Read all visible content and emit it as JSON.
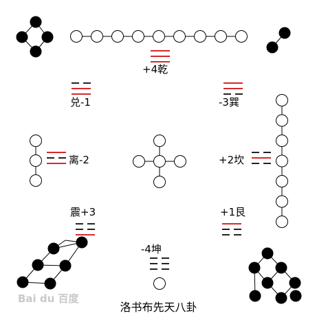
{
  "title": "洛书布先天八卦",
  "watermark": "Bai du 百度",
  "colors": {
    "yang_line": "#d42a2a",
    "yin_line": "#222222",
    "dot_fill_dark": "#000000",
    "dot_fill_light": "#ffffff"
  },
  "trigrams": {
    "qian": {
      "label": "+4乾",
      "lines": [
        "yang",
        "yang",
        "yang"
      ]
    },
    "dui": {
      "label": "兑-1",
      "lines": [
        "yin",
        "yang",
        "yang"
      ]
    },
    "xun": {
      "label": "-3巽",
      "lines": [
        "yang",
        "yang",
        "yin"
      ]
    },
    "li": {
      "label": "离-2",
      "lines": [
        "yang",
        "yin",
        "yang"
      ]
    },
    "kan": {
      "label": "+2坎",
      "lines": [
        "yin",
        "yang",
        "yin"
      ]
    },
    "zhen": {
      "label": "震+3",
      "lines": [
        "yin",
        "yin",
        "yang"
      ]
    },
    "gen": {
      "label": "+1艮",
      "lines": [
        "yang",
        "yin",
        "yin"
      ]
    },
    "kun": {
      "label": "-4坤",
      "lines": [
        "yin",
        "yin",
        "yin"
      ]
    }
  },
  "luoshu_counts": {
    "n": 9,
    "ne": 2,
    "e": 7,
    "se": 8,
    "s": 1,
    "sw": 6,
    "w": 3,
    "nw": 4,
    "center": 5
  }
}
